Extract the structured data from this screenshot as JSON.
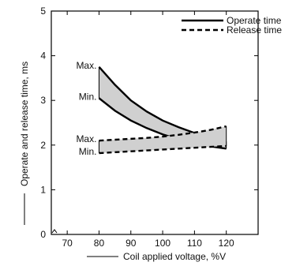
{
  "chart_data": {
    "type": "line",
    "title": "",
    "xlabel": "Coil applied voltage, %V",
    "ylabel": "Operate and release time, ms",
    "xlim": [
      65,
      130
    ],
    "ylim": [
      0,
      5
    ],
    "x_ticks": [
      70,
      80,
      90,
      100,
      110,
      120
    ],
    "y_ticks": [
      0,
      1,
      2,
      3,
      4,
      5
    ],
    "grid": false,
    "legend": "top-right",
    "legend_entries": [
      {
        "label": "Operate time",
        "style": "solid"
      },
      {
        "label": "Release time",
        "style": "dashed"
      }
    ],
    "bands": [
      {
        "name": "Operate time",
        "style": "solid",
        "x": [
          80,
          85,
          90,
          95,
          100,
          105,
          110,
          115,
          120
        ],
        "max": [
          3.75,
          3.35,
          3.0,
          2.75,
          2.55,
          2.4,
          2.27,
          2.17,
          2.08
        ],
        "min": [
          3.05,
          2.77,
          2.55,
          2.38,
          2.24,
          2.13,
          2.04,
          1.97,
          1.92
        ]
      },
      {
        "name": "Release time",
        "style": "dashed",
        "x": [
          80,
          85,
          90,
          95,
          100,
          105,
          110,
          115,
          120
        ],
        "max": [
          2.1,
          2.12,
          2.14,
          2.16,
          2.19,
          2.23,
          2.28,
          2.34,
          2.42
        ],
        "min": [
          1.82,
          1.84,
          1.86,
          1.88,
          1.9,
          1.92,
          1.94,
          1.96,
          1.98
        ]
      }
    ],
    "annotations": [
      {
        "text": "Max.",
        "x": 80,
        "y": 3.75
      },
      {
        "text": "Min.",
        "x": 80,
        "y": 3.05
      },
      {
        "text": "Max.",
        "x": 80,
        "y": 2.1
      },
      {
        "text": "Min.",
        "x": 80,
        "y": 1.82
      }
    ],
    "colors": {
      "band_fill": "#d0d0d0",
      "line": "#000000"
    }
  }
}
